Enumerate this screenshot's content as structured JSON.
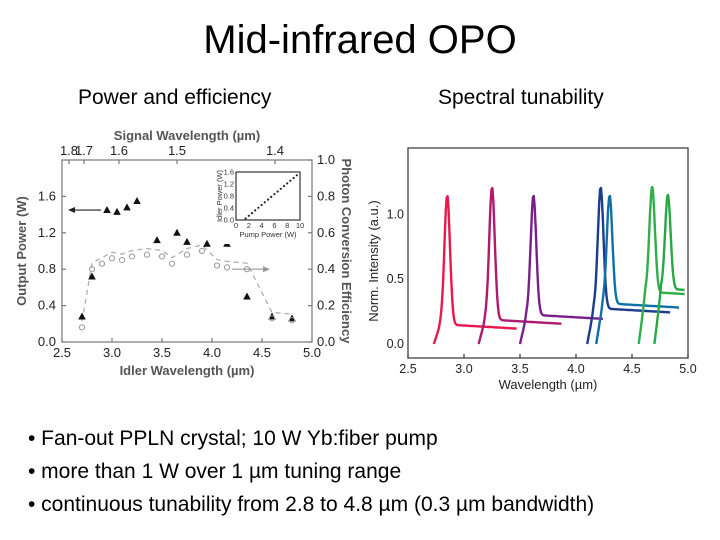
{
  "slide": {
    "title": "Mid-infrared OPO",
    "subtitle_left": "Power and efficiency",
    "subtitle_right": "Spectral tunability",
    "bullets": [
      "•  Fan-out PPLN crystal; 10 W Yb:fiber pump",
      "• more than 1 W over 1 µm tuning range",
      "• continuous tunability from 2.8 to 4.8 µm (0.3 µm bandwidth)"
    ]
  },
  "chart_data": [
    {
      "type": "scatter",
      "xlabel": "Idler Wavelength (µm)",
      "ylabel": "Output Power (W)",
      "y2label": "Photon Conversion Efficiency",
      "toplabel": "Signal Wavelength (µm)",
      "xlim": [
        2.5,
        5.0
      ],
      "ylim": [
        0,
        2.0
      ],
      "y2lim": [
        0,
        1.0
      ],
      "xticks": [
        "2.5",
        "3.0",
        "3.5",
        "4.0",
        "4.5",
        "5.0"
      ],
      "yticks": [
        "0.0",
        "0.4",
        "0.8",
        "1.2",
        "1.6"
      ],
      "y2ticks": [
        "0.0",
        "0.2",
        "0.4",
        "0.6",
        "0.8",
        "1.0"
      ],
      "top_ticks": [
        {
          "label": "1.8",
          "idler": 2.57
        },
        {
          "label": "1.7",
          "idler": 2.72
        },
        {
          "label": "1.6",
          "idler": 3.07
        },
        {
          "label": "1.5",
          "idler": 3.65
        },
        {
          "label": "1.4",
          "idler": 4.63
        }
      ],
      "series": [
        {
          "marker": "filled-triangle",
          "axis": "left",
          "x": [
            2.7,
            2.8,
            2.95,
            3.05,
            3.15,
            3.25,
            3.45,
            3.65,
            3.75,
            3.95,
            4.15,
            4.35,
            4.6,
            4.8
          ],
          "y": [
            0.28,
            0.72,
            1.45,
            1.43,
            1.48,
            1.55,
            1.12,
            1.2,
            1.1,
            1.08,
            1.08,
            0.5,
            0.28,
            0.26
          ]
        },
        {
          "marker": "open-circle",
          "axis": "right",
          "x": [
            2.7,
            2.8,
            2.9,
            3.0,
            3.1,
            3.2,
            3.35,
            3.5,
            3.6,
            3.75,
            3.9,
            4.05,
            4.15,
            4.35,
            4.6,
            4.8
          ],
          "y": [
            0.08,
            0.4,
            0.43,
            0.46,
            0.45,
            0.47,
            0.48,
            0.47,
            0.43,
            0.48,
            0.5,
            0.42,
            0.41,
            0.4,
            0.13,
            0.12
          ]
        }
      ],
      "inset": {
        "xlabel": "Pump Power (W)",
        "ylabel": "Idler Power (W)",
        "xlim": [
          0,
          10
        ],
        "ylim": [
          0,
          1.6
        ],
        "xticks": [
          "0",
          "2",
          "4",
          "6",
          "8",
          "10"
        ],
        "yticks": [
          "0.0",
          "0.4",
          "0.8",
          "1.2",
          "1.6"
        ],
        "x": [
          1.5,
          2.0,
          2.5,
          3.0,
          3.5,
          4.0,
          4.5,
          5.0,
          5.5,
          6.0,
          6.5,
          7.0,
          7.5,
          8.0,
          8.5,
          9.0,
          9.5
        ],
        "y": [
          0.05,
          0.14,
          0.23,
          0.32,
          0.41,
          0.5,
          0.59,
          0.68,
          0.77,
          0.86,
          0.95,
          1.04,
          1.13,
          1.22,
          1.31,
          1.4,
          1.49
        ]
      },
      "colors": {
        "triangle": "#111111",
        "circle": "#999999",
        "dashed_curve": "#aaaaaa",
        "axes": "#777777"
      }
    },
    {
      "type": "line",
      "xlabel": "Wavelength (µm)",
      "ylabel": "Norm. Intensity (a.u.)",
      "xlim": [
        2.5,
        5.0
      ],
      "xticks": [
        "2.5",
        "3.0",
        "3.5",
        "4.0",
        "4.5",
        "5.0"
      ],
      "yticks": [
        "0.0",
        "0.5",
        "1.0"
      ],
      "series": [
        {
          "color": "#e8194f",
          "center": 2.85,
          "baseline": 0.12
        },
        {
          "color": "#b01a6e",
          "center": 3.25,
          "baseline": 0.15
        },
        {
          "color": "#7a1f8a",
          "center": 3.62,
          "baseline": 0.18
        },
        {
          "color": "#1e3c8e",
          "center": 4.22,
          "baseline": 0.22
        },
        {
          "color": "#0f6fa8",
          "center": 4.3,
          "baseline": 0.25
        },
        {
          "color": "#2fae4a",
          "center": 4.68,
          "baseline": 0.32
        },
        {
          "color": "#27a845",
          "center": 4.82,
          "baseline": 0.34
        }
      ]
    }
  ]
}
